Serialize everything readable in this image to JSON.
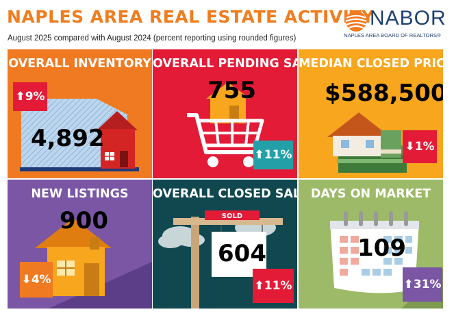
{
  "header": {
    "title": "NAPLES AREA REAL ESTATE ACTIVITY",
    "subtitle": "August 2025 compared with August 2024 (percent reporting using rounded figures)"
  },
  "logo": {
    "name": "NABOR",
    "tagline": "NAPLES AREA BOARD OF REALTORS®"
  },
  "tiles": [
    {
      "title": "OVERALL INVENTORY",
      "value": "4,892",
      "change": "9%",
      "direction": "up",
      "icon": "house-icon"
    },
    {
      "title": "OVERALL PENDING SALES",
      "value": "755",
      "change": "11%",
      "direction": "up",
      "icon": "shopping-cart-icon"
    },
    {
      "title": "MEDIAN CLOSED PRICE",
      "value": "$588,500",
      "change": "1%",
      "direction": "down",
      "icon": "house-money-icon"
    },
    {
      "title": "NEW LISTINGS",
      "value": "900",
      "change": "4%",
      "direction": "down",
      "icon": "house-icon"
    },
    {
      "title": "OVERALL CLOSED SALES",
      "value": "604",
      "change": "11%",
      "direction": "up",
      "icon": "sold-sign-icon",
      "sign_text": "SOLD"
    },
    {
      "title": "DAYS ON MARKET",
      "value": "109",
      "change": "31%",
      "direction": "up",
      "icon": "calendar-icon"
    }
  ],
  "colors": {
    "orange": "#f07a22",
    "red": "#e31b37",
    "yellow": "#f7a61d",
    "purple": "#7a56a5",
    "dark_teal": "#11484f",
    "green": "#9cba67",
    "badge_teal": "#23a0a7",
    "brand_navy": "#1d3f73"
  }
}
